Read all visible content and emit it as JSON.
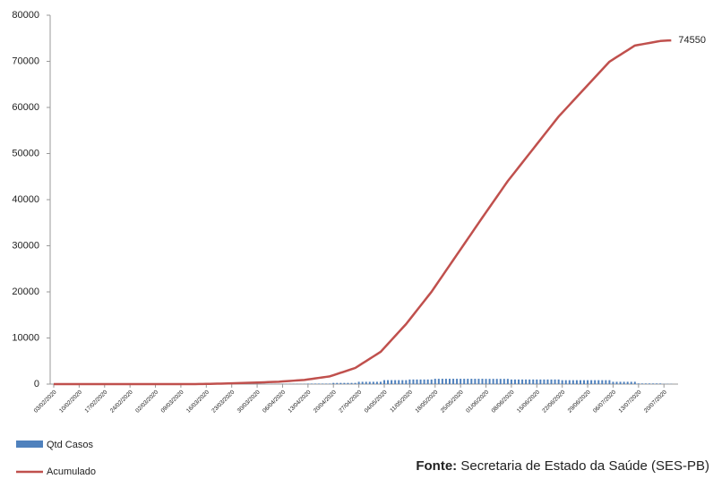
{
  "chart_data": {
    "type": "bar_line",
    "categories": [
      "03/02/2020",
      null,
      null,
      null,
      null,
      null,
      null,
      "10/02/2020",
      null,
      null,
      null,
      null,
      null,
      null,
      "17/02/2020",
      null,
      null,
      null,
      null,
      null,
      null,
      "24/02/2020",
      null,
      null,
      null,
      null,
      null,
      null,
      "02/03/2020",
      null,
      null,
      null,
      null,
      null,
      null,
      "09/03/2020",
      null,
      null,
      null,
      null,
      null,
      null,
      "16/03/2020",
      null,
      null,
      null,
      null,
      null,
      null,
      "23/03/2020",
      null,
      null,
      null,
      null,
      null,
      null,
      "30/03/2020",
      null,
      null,
      null,
      null,
      null,
      null,
      "06/04/2020",
      null,
      null,
      null,
      null,
      null,
      null,
      "13/04/2020",
      null,
      null,
      null,
      null,
      null,
      null,
      "20/04/2020",
      null,
      null,
      null,
      null,
      null,
      null,
      "27/04/2020",
      null,
      null,
      null,
      null,
      null,
      null,
      "04/05/2020",
      null,
      null,
      null,
      null,
      null,
      null,
      "11/05/2020",
      null,
      null,
      null,
      null,
      null,
      null,
      "18/05/2020",
      null,
      null,
      null,
      null,
      null,
      null,
      "25/05/2020",
      null,
      null,
      null,
      null,
      null,
      null,
      "01/06/2020",
      null,
      null,
      null,
      null,
      null,
      null,
      "08/06/2020",
      null,
      null,
      null,
      null,
      null,
      null,
      "15/06/2020",
      null,
      null,
      null,
      null,
      null,
      null,
      "22/06/2020",
      null,
      null,
      null,
      null,
      null,
      null,
      "29/06/2020",
      null,
      null,
      null,
      null,
      null,
      null,
      "06/07/2020",
      null,
      null,
      null,
      null,
      null,
      null,
      "13/07/2020",
      null,
      null,
      null,
      null,
      null,
      null,
      "20/07/2020",
      null,
      null
    ],
    "series": [
      {
        "name": "Qtd Casos",
        "kind": "bar",
        "color": "#4f81bd",
        "values": [
          0,
          0,
          0,
          0,
          0,
          0,
          0,
          0,
          0,
          0,
          0,
          0,
          0,
          0,
          0,
          0,
          0,
          0,
          0,
          0,
          0,
          0,
          0,
          0,
          0,
          0,
          0,
          0,
          0,
          0,
          0,
          0,
          0,
          0,
          0,
          0,
          0,
          0,
          0,
          5,
          10,
          15,
          15,
          15,
          15,
          15,
          15,
          15,
          15,
          25,
          25,
          25,
          25,
          25,
          25,
          25,
          30,
          30,
          30,
          30,
          30,
          30,
          30,
          55,
          55,
          55,
          55,
          55,
          55,
          55,
          110,
          110,
          110,
          110,
          110,
          110,
          110,
          260,
          260,
          260,
          260,
          260,
          260,
          260,
          500,
          500,
          500,
          500,
          500,
          500,
          500,
          860,
          860,
          860,
          860,
          860,
          860,
          860,
          1000,
          1000,
          1000,
          1000,
          1000,
          1000,
          1000,
          1150,
          1150,
          1150,
          1150,
          1150,
          1150,
          1150,
          1150,
          1150,
          1150,
          1150,
          1150,
          1150,
          1150,
          1130,
          1130,
          1130,
          1130,
          1130,
          1130,
          1130,
          1000,
          1000,
          1000,
          1000,
          1000,
          1000,
          1000,
          1000,
          1000,
          1000,
          1000,
          1000,
          1000,
          1000,
          850,
          850,
          850,
          850,
          850,
          850,
          850,
          850,
          850,
          850,
          850,
          850,
          850,
          850,
          500,
          500,
          500,
          500,
          500,
          500,
          500,
          140,
          140,
          140,
          140,
          140,
          140,
          140,
          50,
          50,
          45
        ]
      },
      {
        "name": "Acumulado",
        "kind": "line",
        "color": "#c0504d",
        "values": [
          0,
          0,
          0,
          0,
          0,
          0,
          0,
          0,
          0,
          0,
          0,
          0,
          0,
          0,
          0,
          0,
          0,
          0,
          0,
          0,
          0,
          0,
          0,
          0,
          0,
          0,
          0,
          0,
          0,
          0,
          0,
          0,
          0,
          0,
          0,
          0,
          0,
          0,
          0,
          5,
          15,
          30,
          45,
          60,
          75,
          90,
          105,
          120,
          135,
          160,
          185,
          210,
          235,
          260,
          285,
          310,
          340,
          370,
          400,
          430,
          460,
          490,
          520,
          575,
          630,
          685,
          740,
          795,
          850,
          905,
          1015,
          1125,
          1235,
          1345,
          1455,
          1565,
          1675,
          1935,
          2195,
          2455,
          2715,
          2975,
          3235,
          3495,
          3995,
          4495,
          4995,
          5495,
          5995,
          6495,
          6995,
          7855,
          8715,
          9575,
          10435,
          11295,
          12155,
          13015,
          14015,
          15015,
          16015,
          17015,
          18015,
          19015,
          20015,
          21165,
          22315,
          23465,
          24615,
          25765,
          26915,
          28065,
          29215,
          30365,
          31515,
          32665,
          33815,
          34965,
          36115,
          37245,
          38375,
          39505,
          40635,
          41765,
          42895,
          44025,
          45025,
          46025,
          47025,
          48025,
          49025,
          50025,
          51025,
          52025,
          53025,
          54025,
          55025,
          56025,
          57025,
          58025,
          58875,
          59725,
          60575,
          61425,
          62275,
          63125,
          63975,
          64825,
          65675,
          66525,
          67375,
          68225,
          69075,
          69925,
          70425,
          70925,
          71425,
          71925,
          72425,
          72925,
          73425,
          73565,
          73705,
          73845,
          73985,
          74125,
          74265,
          74405,
          74455,
          74505,
          74550
        ]
      }
    ],
    "annotation": "74550",
    "ylim": [
      0,
      80000
    ],
    "yticks": [
      0,
      10000,
      20000,
      30000,
      40000,
      50000,
      60000,
      70000,
      80000
    ],
    "source_label": "Fonte:",
    "source": "Secretaria de Estado da Saúde (SES-PB)"
  }
}
